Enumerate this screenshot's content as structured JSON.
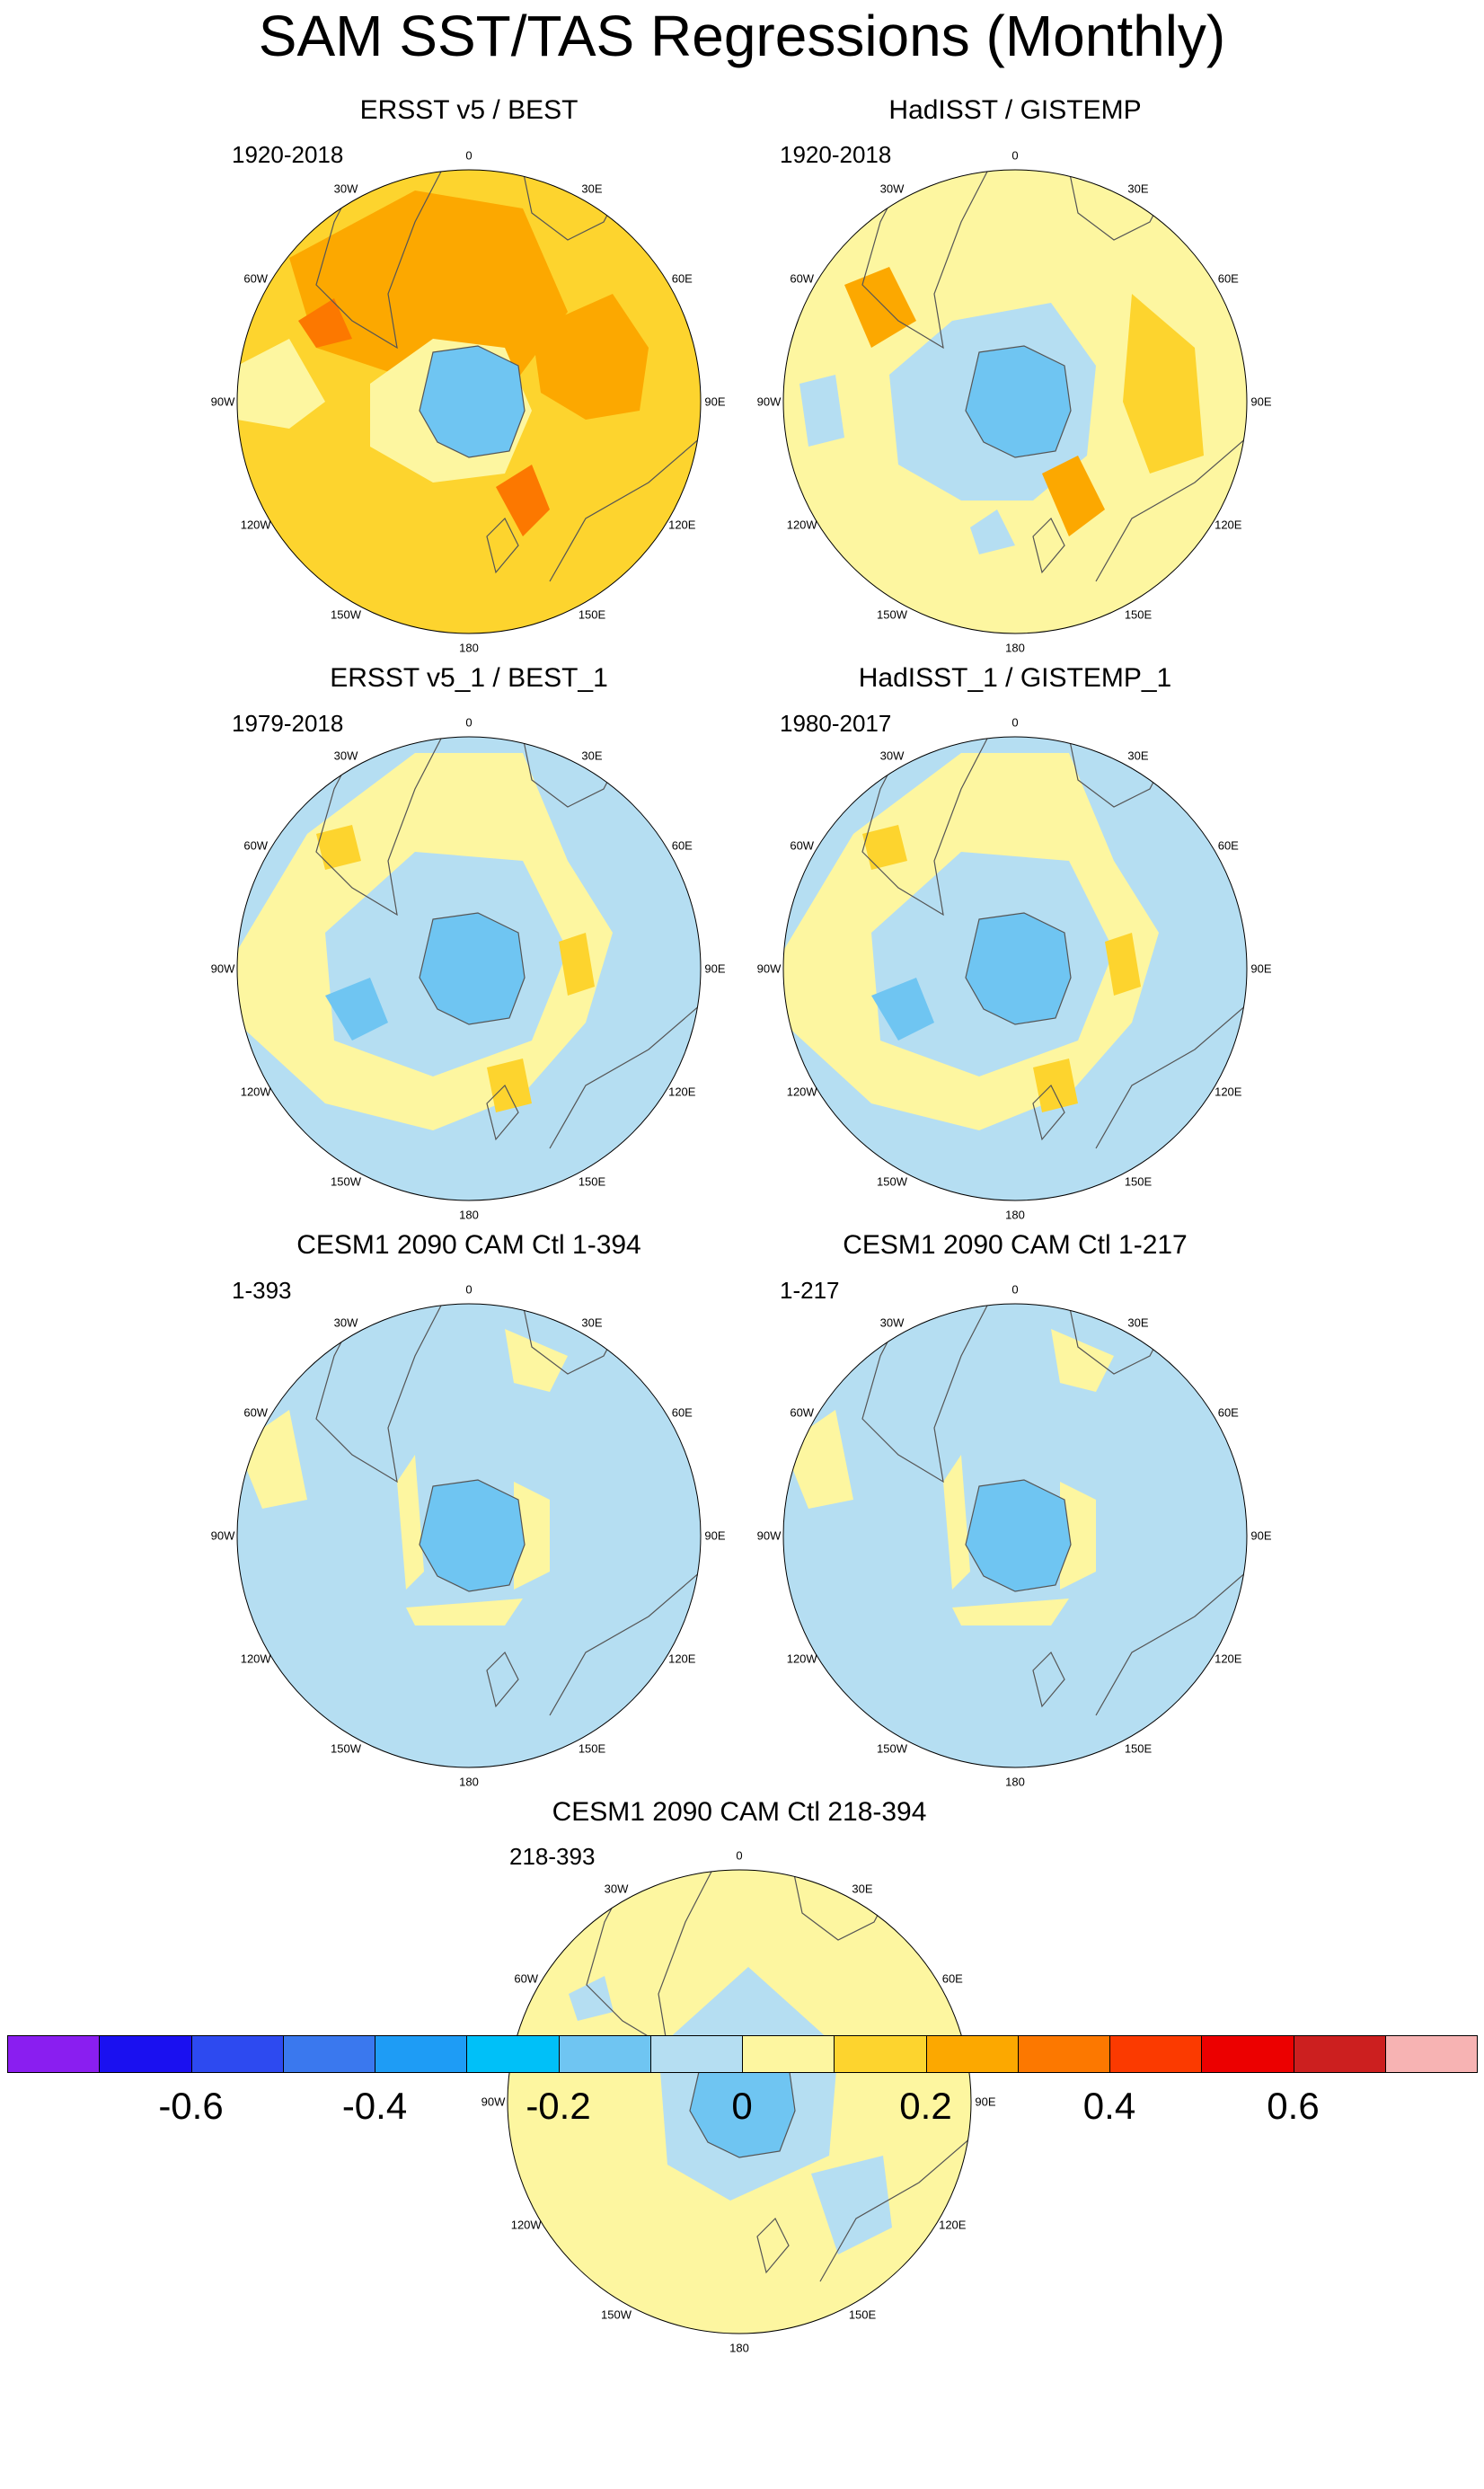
{
  "title": "SAM SST/TAS Regressions (Monthly)",
  "panels": [
    {
      "title": "ERSST v5 / BEST",
      "period": "1920-2018",
      "pattern": "warm"
    },
    {
      "title": "HadISST / GISTEMP",
      "period": "1920-2018",
      "pattern": "mixed"
    },
    {
      "title": "ERSST v5_1 / BEST_1",
      "period": "1979-2018",
      "pattern": "cool-mixed"
    },
    {
      "title": "HadISST_1 / GISTEMP_1",
      "period": "1980-2017",
      "pattern": "cool-mixed"
    },
    {
      "title": "CESM1 2090 CAM Ctl 1-394",
      "period": "1-393",
      "pattern": "cool"
    },
    {
      "title": "CESM1 2090 CAM Ctl 1-217",
      "period": "1-217",
      "pattern": "cool"
    },
    {
      "title": "CESM1 2090 CAM Ctl 218-394",
      "period": "218-393",
      "pattern": "neutral"
    }
  ],
  "longitude_labels": [
    "0",
    "30E",
    "60E",
    "90E",
    "120E",
    "150E",
    "180",
    "150W",
    "120W",
    "90W",
    "60W",
    "30W"
  ],
  "colorbar": {
    "colors": [
      "#8a1ef0",
      "#1a10f0",
      "#2d4af0",
      "#3a78ee",
      "#1e9cf5",
      "#00c0f8",
      "#6fc5f2",
      "#b5def2",
      "#fdf6a0",
      "#fdd42e",
      "#fca800",
      "#fc7800",
      "#fb3a00",
      "#ec0000",
      "#cc1f1f",
      "#f7b3b3"
    ],
    "labels": [
      "-0.6",
      "-0.4",
      "-0.2",
      "0",
      "0.2",
      "0.4",
      "0.6"
    ]
  }
}
